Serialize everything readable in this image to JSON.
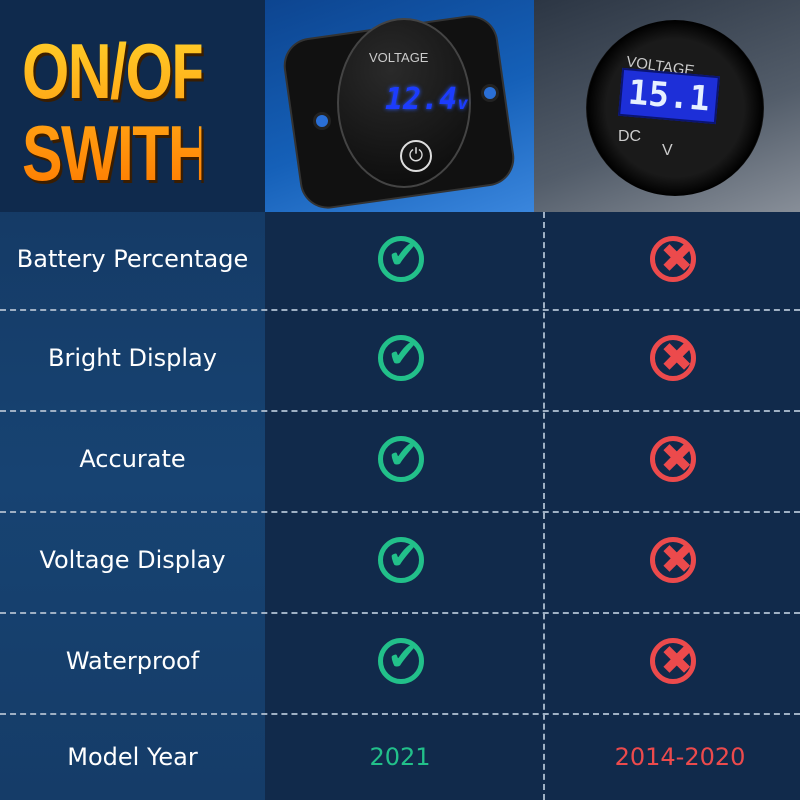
{
  "header": {
    "title_line1": "ON/OFF",
    "title_line2": "SWITH",
    "product_new": {
      "label": "VOLTAGE",
      "reading": "12.4",
      "unit": "v"
    },
    "product_old": {
      "label": "VOLTAGE",
      "reading": "15.1",
      "left_mark": "DC",
      "right_mark": "V"
    }
  },
  "colors": {
    "check": "#22c08a",
    "cross": "#ec4a4c",
    "title": "#ff9a10",
    "background": "#112a4b"
  },
  "rows": [
    {
      "label": "Battery Percentage",
      "new": "check-icon",
      "old": "cross-icon"
    },
    {
      "label": "Bright Display",
      "new": "check-icon",
      "old": "cross-icon"
    },
    {
      "label": "Accurate",
      "new": "check-icon",
      "old": "cross-icon"
    },
    {
      "label": "Voltage Display",
      "new": "check-icon",
      "old": "cross-icon"
    },
    {
      "label": "Waterproof",
      "new": "check-icon",
      "old": "cross-icon"
    }
  ],
  "model_year": {
    "label": "Model Year",
    "new": "2021",
    "old": "2014-2020"
  },
  "glyphs": {
    "check": "✔",
    "cross": "✖",
    "power": "⏻"
  }
}
